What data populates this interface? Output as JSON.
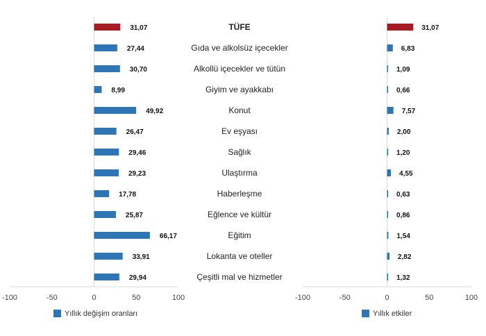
{
  "chart_data": [
    {
      "type": "bar",
      "orientation": "horizontal",
      "legend": "Yıllık değişim oranları",
      "legend_position": "bottom",
      "xlim": [
        -100,
        100
      ],
      "xticks": [
        "-100",
        "-50",
        "0",
        "50",
        "100"
      ],
      "grid": false,
      "categories": [
        "TÜFE",
        "Gıda ve alkolsüz içecekler",
        "Alkollü içecekler ve tütün",
        "Giyim ve ayakkabı",
        "Konut",
        "Ev eşyası",
        "Sağlık",
        "Ulaştırma",
        "Haberleşme",
        "Eğlence ve kültür",
        "Eğitim",
        "Lokanta ve oteller",
        "Çeşitli mal ve hizmetler"
      ],
      "values": [
        31.07,
        27.44,
        30.7,
        8.99,
        49.92,
        26.47,
        29.46,
        29.23,
        17.78,
        25.87,
        66.17,
        33.91,
        29.94
      ],
      "labels": [
        "31,07",
        "27,44",
        "30,70",
        "8,99",
        "49,92",
        "26,47",
        "29,46",
        "29,23",
        "17,78",
        "25,87",
        "66,17",
        "33,91",
        "29,94"
      ]
    },
    {
      "type": "bar",
      "orientation": "horizontal",
      "legend": "Yıllık etkiler",
      "legend_position": "bottom",
      "xlim": [
        -100,
        100
      ],
      "xticks": [
        "-100",
        "-50",
        "0",
        "50",
        "100"
      ],
      "grid": false,
      "categories": [
        "TÜFE",
        "Gıda ve alkolsüz içecekler",
        "Alkollü içecekler ve tütün",
        "Giyim ve ayakkabı",
        "Konut",
        "Ev eşyası",
        "Sağlık",
        "Ulaştırma",
        "Haberleşme",
        "Eğlence ve kültür",
        "Eğitim",
        "Lokanta ve oteller",
        "Çeşitli mal ve hizmetler"
      ],
      "values": [
        31.07,
        6.83,
        1.09,
        0.66,
        7.57,
        2.0,
        1.2,
        4.55,
        0.63,
        0.86,
        1.54,
        2.82,
        1.32
      ],
      "labels": [
        "31,07",
        "6,83",
        "1,09",
        "0,66",
        "7,57",
        "2,00",
        "1,20",
        "4,55",
        "0,63",
        "0,86",
        "1,54",
        "2,82",
        "1,32"
      ]
    }
  ],
  "colors": {
    "total": "#A51C24",
    "series": "#2E75B6",
    "axis": "#D9D9D9"
  },
  "highlight_category": "TÜFE"
}
